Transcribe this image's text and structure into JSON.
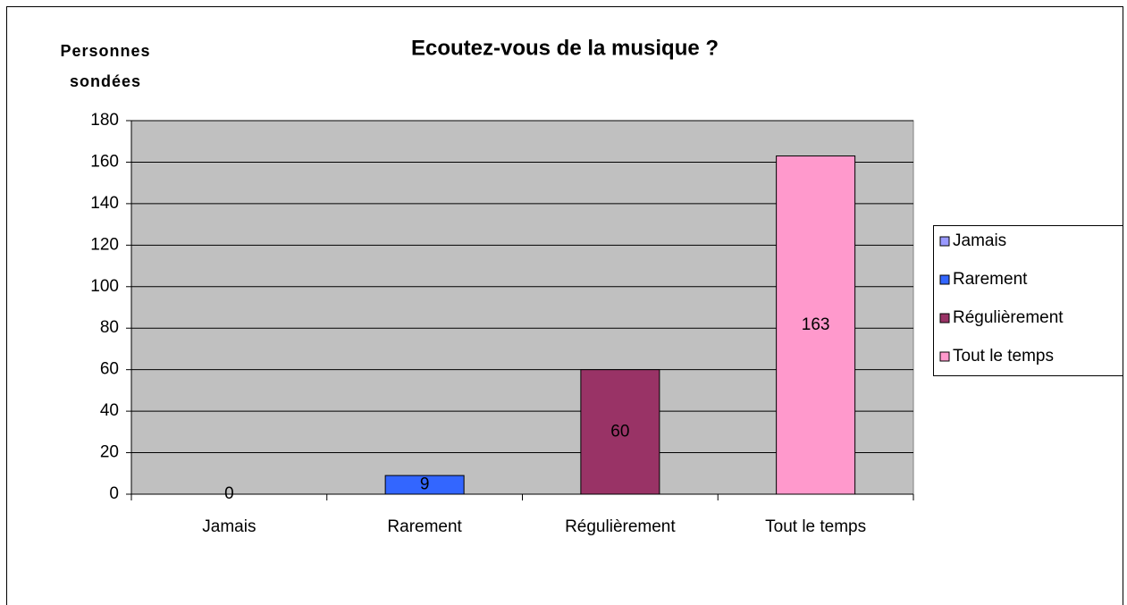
{
  "chart_data": {
    "type": "bar",
    "title": "Ecoutez-vous de la musique ?",
    "ylabel": [
      "Personnes",
      "sondées"
    ],
    "categories": [
      "Jamais",
      "Rarement",
      "Régulièrement",
      "Tout le temps"
    ],
    "values": [
      0,
      9,
      60,
      163
    ],
    "colors": [
      "#9999ff",
      "#3366ff",
      "#993366",
      "#ff99cc"
    ],
    "ylim": [
      0,
      180
    ],
    "yticks": [
      0,
      20,
      40,
      60,
      80,
      100,
      120,
      140,
      160,
      180
    ],
    "grid": true,
    "legend": "right"
  }
}
